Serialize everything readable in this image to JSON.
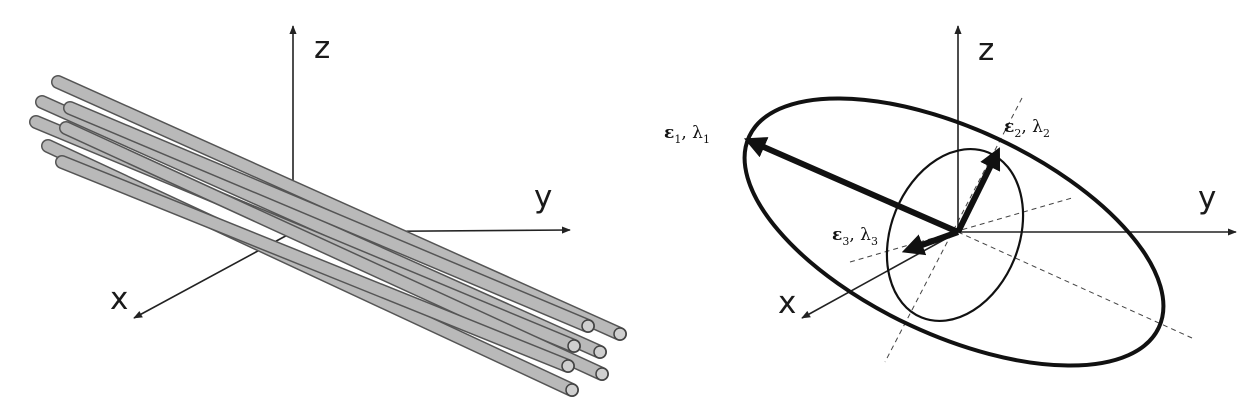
{
  "left_panel": {
    "axes": {
      "z": "z",
      "y": "y",
      "x": "x"
    }
  },
  "right_panel": {
    "axes": {
      "z": "z",
      "y": "y",
      "x": "x"
    },
    "eigen_labels": [
      {
        "eps": "ε",
        "lam": "λ",
        "idx": "1"
      },
      {
        "eps": "ε",
        "lam": "λ",
        "idx": "2"
      },
      {
        "eps": "ε",
        "lam": "λ",
        "idx": "3"
      }
    ]
  },
  "colors": {
    "axis": "#222222",
    "rod_fill": "#b9b9b9",
    "rod_edge": "#555555",
    "ellipsoid": "#111111"
  }
}
